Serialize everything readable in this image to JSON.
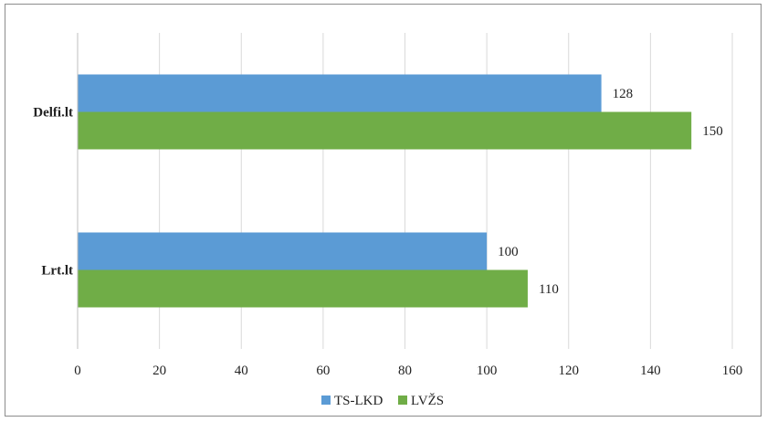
{
  "chart_data": {
    "type": "bar",
    "orientation": "horizontal",
    "title": "",
    "xlabel": "",
    "ylabel": "",
    "categories": [
      "Delfi.lt",
      "Lrt.lt"
    ],
    "series": [
      {
        "name": "TS-LKD",
        "values": [
          128,
          100
        ],
        "color": "#5b9bd5"
      },
      {
        "name": "LVŽS",
        "values": [
          150,
          110
        ],
        "color": "#70ad47"
      }
    ],
    "xlim": [
      0,
      160
    ],
    "xticks": [
      0,
      20,
      40,
      60,
      80,
      100,
      120,
      140,
      160
    ],
    "grid": "vertical",
    "legend": "bottom",
    "data_labels": true
  }
}
